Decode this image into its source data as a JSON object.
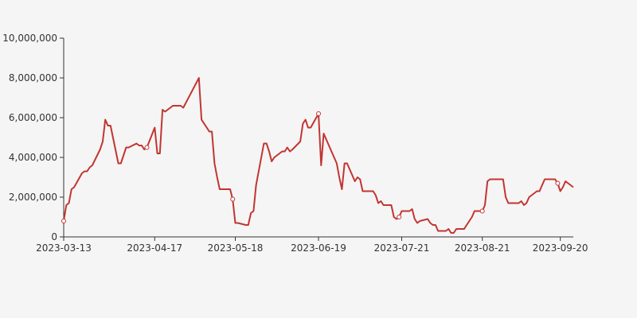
{
  "colors": {
    "background": "#f5f5f5",
    "line": "#c23531",
    "axis": "#333333",
    "marker_fill": "#ffffff"
  },
  "chart_data": {
    "type": "line",
    "title": "",
    "xlabel": "",
    "ylabel": "",
    "grid": false,
    "legend": "none",
    "ylim": [
      0,
      10000000
    ],
    "y_ticks": [
      0,
      2000000,
      4000000,
      6000000,
      8000000,
      10000000
    ],
    "y_tick_labels": [
      "0",
      "2,000,000",
      "4,000,000",
      "6,000,000",
      "8,000,000",
      "10,000,000"
    ],
    "x_ticks": [
      "2023-03-13",
      "2023-04-17",
      "2023-05-18",
      "2023-06-19",
      "2023-07-21",
      "2023-08-21",
      "2023-09-20"
    ],
    "series": [
      {
        "color": "#c23531",
        "x": [
          "2023-03-13",
          "2023-03-14",
          "2023-03-15",
          "2023-03-16",
          "2023-03-17",
          "2023-03-20",
          "2023-03-21",
          "2023-03-22",
          "2023-03-23",
          "2023-03-24",
          "2023-03-27",
          "2023-03-28",
          "2023-03-29",
          "2023-03-30",
          "2023-03-31",
          "2023-04-03",
          "2023-04-04",
          "2023-04-06",
          "2023-04-07",
          "2023-04-10",
          "2023-04-11",
          "2023-04-12",
          "2023-04-13",
          "2023-04-14",
          "2023-04-17",
          "2023-04-18",
          "2023-04-19",
          "2023-04-20",
          "2023-04-21",
          "2023-04-24",
          "2023-04-25",
          "2023-04-26",
          "2023-04-27",
          "2023-04-28",
          "2023-05-04",
          "2023-05-05",
          "2023-05-08",
          "2023-05-09",
          "2023-05-10",
          "2023-05-11",
          "2023-05-12",
          "2023-05-15",
          "2023-05-16",
          "2023-05-17",
          "2023-05-18",
          "2023-05-19",
          "2023-05-22",
          "2023-05-23",
          "2023-05-24",
          "2023-05-25",
          "2023-05-26",
          "2023-05-29",
          "2023-05-30",
          "2023-05-31",
          "2023-06-01",
          "2023-06-02",
          "2023-06-05",
          "2023-06-06",
          "2023-06-07",
          "2023-06-08",
          "2023-06-09",
          "2023-06-12",
          "2023-06-13",
          "2023-06-14",
          "2023-06-15",
          "2023-06-16",
          "2023-06-19",
          "2023-06-20",
          "2023-06-21",
          "2023-06-26",
          "2023-06-27",
          "2023-06-28",
          "2023-06-29",
          "2023-06-30",
          "2023-07-03",
          "2023-07-04",
          "2023-07-05",
          "2023-07-06",
          "2023-07-07",
          "2023-07-10",
          "2023-07-11",
          "2023-07-12",
          "2023-07-13",
          "2023-07-14",
          "2023-07-17",
          "2023-07-18",
          "2023-07-19",
          "2023-07-20",
          "2023-07-21",
          "2023-07-24",
          "2023-07-25",
          "2023-07-26",
          "2023-07-27",
          "2023-07-28",
          "2023-07-31",
          "2023-08-01",
          "2023-08-02",
          "2023-08-03",
          "2023-08-04",
          "2023-08-07",
          "2023-08-08",
          "2023-08-09",
          "2023-08-10",
          "2023-08-11",
          "2023-08-14",
          "2023-08-15",
          "2023-08-16",
          "2023-08-17",
          "2023-08-18",
          "2023-08-21",
          "2023-08-22",
          "2023-08-23",
          "2023-08-24",
          "2023-08-25",
          "2023-08-28",
          "2023-08-29",
          "2023-08-30",
          "2023-08-31",
          "2023-09-01",
          "2023-09-04",
          "2023-09-05",
          "2023-09-06",
          "2023-09-07",
          "2023-09-08",
          "2023-09-11",
          "2023-09-12",
          "2023-09-13",
          "2023-09-14",
          "2023-09-15",
          "2023-09-18",
          "2023-09-19",
          "2023-09-20",
          "2023-09-21",
          "2023-09-22",
          "2023-09-25"
        ],
        "values": [
          800000,
          1600000,
          1700000,
          2400000,
          2500000,
          3200000,
          3300000,
          3300000,
          3500000,
          3600000,
          4400000,
          4800000,
          5900000,
          5600000,
          5600000,
          3700000,
          3700000,
          4500000,
          4500000,
          4700000,
          4600000,
          4600000,
          4400000,
          4500000,
          5500000,
          4200000,
          4200000,
          6400000,
          6300000,
          6600000,
          6600000,
          6600000,
          6600000,
          6500000,
          8000000,
          5900000,
          5300000,
          5300000,
          3700000,
          3000000,
          2400000,
          2400000,
          2400000,
          1900000,
          700000,
          700000,
          600000,
          600000,
          1200000,
          1300000,
          2600000,
          4700000,
          4700000,
          4300000,
          3800000,
          4000000,
          4300000,
          4300000,
          4500000,
          4300000,
          4400000,
          4800000,
          5700000,
          5900000,
          5500000,
          5500000,
          6200000,
          3600000,
          5200000,
          3700000,
          3000000,
          2400000,
          3700000,
          3700000,
          2800000,
          3000000,
          2900000,
          2300000,
          2300000,
          2300000,
          2100000,
          1700000,
          1800000,
          1600000,
          1600000,
          1000000,
          900000,
          1000000,
          1300000,
          1300000,
          1400000,
          900000,
          700000,
          800000,
          900000,
          700000,
          600000,
          600000,
          300000,
          300000,
          400000,
          200000,
          200000,
          400000,
          400000,
          600000,
          800000,
          1000000,
          1300000,
          1300000,
          1600000,
          2800000,
          2900000,
          2900000,
          2900000,
          2900000,
          2000000,
          1700000,
          1700000,
          1700000,
          1800000,
          1600000,
          1700000,
          2000000,
          2300000,
          2300000,
          2600000,
          2900000,
          2900000,
          2900000,
          2700000,
          2300000,
          2500000,
          2800000,
          2500000
        ]
      }
    ],
    "markers": [
      "2023-03-13",
      "2023-04-14",
      "2023-05-17",
      "2023-06-19",
      "2023-07-20",
      "2023-08-21",
      "2023-09-19"
    ]
  }
}
